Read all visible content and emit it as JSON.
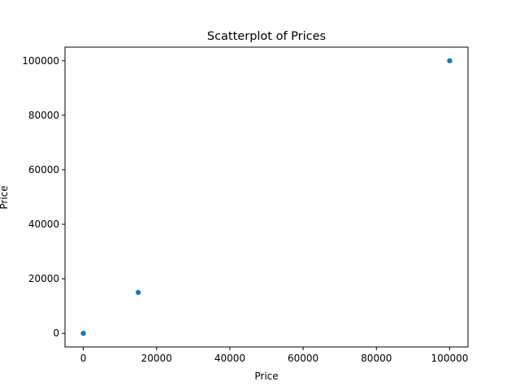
{
  "chart_data": {
    "type": "scatter",
    "title": "Scatterplot of Prices",
    "xlabel": "Price",
    "ylabel": "Price",
    "xlim": [
      -5000,
      105000
    ],
    "ylim": [
      -5000,
      105000
    ],
    "x_ticks": [
      0,
      20000,
      40000,
      60000,
      80000,
      100000
    ],
    "y_ticks": [
      0,
      20000,
      40000,
      60000,
      80000,
      100000
    ],
    "x_tick_labels": [
      "0",
      "20000",
      "40000",
      "60000",
      "80000",
      "100000"
    ],
    "y_tick_labels": [
      "0",
      "20000",
      "40000",
      "60000",
      "80000",
      "100000"
    ],
    "grid": false,
    "marker_color": "#1f77b4",
    "points": [
      {
        "x": 0,
        "y": 0
      },
      {
        "x": 15000,
        "y": 15000
      },
      {
        "x": 100000,
        "y": 100000
      }
    ]
  }
}
